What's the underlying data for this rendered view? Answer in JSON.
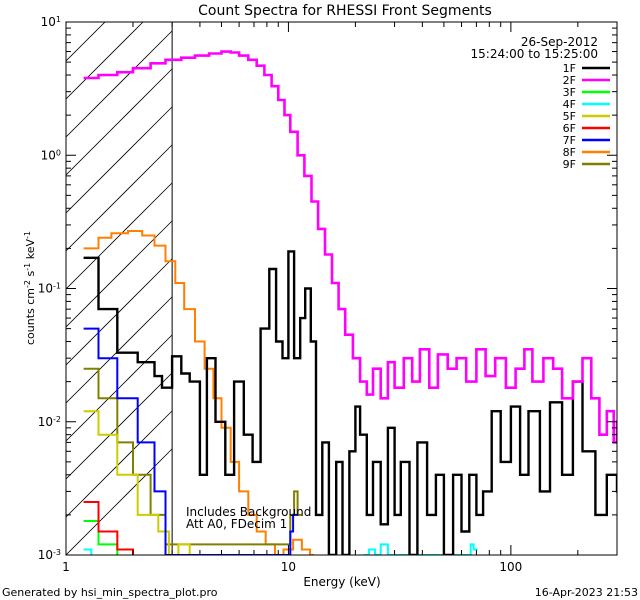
{
  "chart_data": {
    "type": "line",
    "title": "Count Spectra for RHESSI Front Segments",
    "xlabel": "Energy (keV)",
    "ylabel_main": "counts cm",
    "ylabel_exp1": "-2",
    "ylabel_mid": " s",
    "ylabel_exp2": "-1",
    "ylabel_end": " keV",
    "ylabel_exp3": "-1",
    "x_scale": "log",
    "y_scale": "log",
    "xlim": [
      1,
      300
    ],
    "ylim": [
      0.001,
      10
    ],
    "x_ticks": [
      {
        "value": 1,
        "label": "1"
      },
      {
        "value": 10,
        "label": "10"
      },
      {
        "value": 100,
        "label": "100"
      }
    ],
    "y_ticks": [
      {
        "value": 0.001,
        "base": "10",
        "exp": "-3"
      },
      {
        "value": 0.01,
        "base": "10",
        "exp": "-2"
      },
      {
        "value": 0.1,
        "base": "10",
        "exp": "-1"
      },
      {
        "value": 1,
        "base": "10",
        "exp": "0"
      },
      {
        "value": 10,
        "base": "10",
        "exp": "1"
      }
    ],
    "date": "26-Sep-2012",
    "time_range": "15:24:00 to 15:25:00",
    "legend_position": "top-right",
    "hatched_region_x": [
      1,
      3
    ],
    "annotations": [
      "Includes Background",
      "Att A0, FDecim 1"
    ],
    "series": [
      {
        "name": "1F",
        "color": "#000000",
        "points": [
          [
            1.2,
            0.17
          ],
          [
            1.4,
            0.07
          ],
          [
            1.7,
            0.033
          ],
          [
            2.1,
            0.028
          ],
          [
            2.5,
            0.022
          ],
          [
            2.7,
            0.018
          ],
          [
            3.0,
            0.031
          ],
          [
            3.3,
            0.023
          ],
          [
            3.6,
            0.02
          ],
          [
            4.0,
            0.004
          ],
          [
            4.3,
            0.03
          ],
          [
            4.7,
            0.01
          ],
          [
            5.2,
            0.004
          ],
          [
            5.7,
            0.02
          ],
          [
            6.3,
            0.008
          ],
          [
            6.9,
            0.005
          ],
          [
            7.5,
            0.05
          ],
          [
            8.2,
            0.14
          ],
          [
            8.8,
            0.04
          ],
          [
            9.4,
            0.03
          ],
          [
            10.0,
            0.19
          ],
          [
            10.6,
            0.03
          ],
          [
            11.3,
            0.06
          ],
          [
            11.9,
            0.1
          ],
          [
            12.6,
            0.04
          ],
          [
            13.3,
            0.002
          ],
          [
            14.2,
            0.007
          ],
          [
            15.2,
            0.001
          ],
          [
            16.4,
            0.005
          ],
          [
            17.5,
            0.001
          ],
          [
            18.8,
            0.006
          ],
          [
            20.0,
            0.013
          ],
          [
            21.0,
            0.008
          ],
          [
            22.5,
            0.002
          ],
          [
            24.0,
            0.005
          ],
          [
            26.0,
            0.0017
          ],
          [
            28.0,
            0.009
          ],
          [
            30.0,
            0.002
          ],
          [
            32.0,
            0.005
          ],
          [
            35.0,
            0.001
          ],
          [
            38.0,
            0.007
          ],
          [
            42.0,
            0.002
          ],
          [
            46.0,
            0.004
          ],
          [
            50.0,
            0.001
          ],
          [
            55.0,
            0.004
          ],
          [
            60.0,
            0.0015
          ],
          [
            65.0,
            0.004
          ],
          [
            70.0,
            0.002
          ],
          [
            75.0,
            0.003
          ],
          [
            82.0,
            0.012
          ],
          [
            90.0,
            0.005
          ],
          [
            100.0,
            0.013
          ],
          [
            110.0,
            0.004
          ],
          [
            120.0,
            0.012
          ],
          [
            135.0,
            0.003
          ],
          [
            150.0,
            0.014
          ],
          [
            170.0,
            0.004
          ],
          [
            190.0,
            0.02
          ],
          [
            210.0,
            0.006
          ],
          [
            240.0,
            0.002
          ],
          [
            270.0,
            0.004
          ],
          [
            300.0,
            0.003
          ]
        ]
      },
      {
        "name": "2F",
        "color": "#ff00ff",
        "points": [
          [
            1.2,
            3.8
          ],
          [
            1.4,
            4.0
          ],
          [
            1.7,
            4.2
          ],
          [
            2.0,
            4.5
          ],
          [
            2.4,
            4.9
          ],
          [
            2.8,
            5.2
          ],
          [
            3.3,
            5.4
          ],
          [
            3.8,
            5.6
          ],
          [
            4.4,
            5.8
          ],
          [
            5.0,
            6.0
          ],
          [
            5.5,
            5.9
          ],
          [
            6.0,
            5.6
          ],
          [
            6.6,
            5.2
          ],
          [
            7.2,
            4.7
          ],
          [
            7.8,
            4.0
          ],
          [
            8.4,
            3.3
          ],
          [
            9.0,
            2.6
          ],
          [
            9.6,
            2.0
          ],
          [
            10.2,
            1.5
          ],
          [
            11.0,
            1.0
          ],
          [
            11.8,
            0.7
          ],
          [
            12.7,
            0.45
          ],
          [
            13.6,
            0.28
          ],
          [
            14.6,
            0.18
          ],
          [
            15.7,
            0.11
          ],
          [
            16.8,
            0.07
          ],
          [
            18.0,
            0.045
          ],
          [
            19.5,
            0.03
          ],
          [
            21.0,
            0.02
          ],
          [
            22.5,
            0.016
          ],
          [
            24.0,
            0.025
          ],
          [
            26.0,
            0.015
          ],
          [
            28.0,
            0.028
          ],
          [
            30.0,
            0.018
          ],
          [
            33.0,
            0.03
          ],
          [
            36.0,
            0.02
          ],
          [
            39.0,
            0.035
          ],
          [
            43.0,
            0.018
          ],
          [
            47.0,
            0.032
          ],
          [
            52.0,
            0.025
          ],
          [
            57.0,
            0.03
          ],
          [
            63.0,
            0.02
          ],
          [
            70.0,
            0.035
          ],
          [
            77.0,
            0.022
          ],
          [
            85.0,
            0.03
          ],
          [
            95.0,
            0.018
          ],
          [
            105.0,
            0.025
          ],
          [
            115.0,
            0.035
          ],
          [
            125.0,
            0.02
          ],
          [
            140.0,
            0.03
          ],
          [
            155.0,
            0.025
          ],
          [
            170.0,
            0.015
          ],
          [
            190.0,
            0.02
          ],
          [
            210.0,
            0.03
          ],
          [
            230.0,
            0.015
          ],
          [
            250.0,
            0.008
          ],
          [
            270.0,
            0.012
          ],
          [
            290.0,
            0.007
          ],
          [
            300.0,
            0.01
          ]
        ]
      },
      {
        "name": "3F",
        "color": "#00ff00",
        "points": [
          [
            1.2,
            0.0018
          ],
          [
            1.4,
            0.0012
          ],
          [
            1.7,
            0.0009
          ]
        ]
      },
      {
        "name": "4F",
        "color": "#00ffff",
        "points": [
          [
            1.2,
            0.0011
          ],
          [
            1.3,
            0.0009
          ],
          [
            22.0,
            0.001
          ],
          [
            23.0,
            0.0011
          ],
          [
            24.5,
            0.001
          ],
          [
            26.0,
            0.0012
          ],
          [
            28.0,
            0.001
          ],
          [
            66.0,
            0.0012
          ],
          [
            68.0,
            0.0011
          ]
        ]
      },
      {
        "name": "5F",
        "color": "#cccc00",
        "points": [
          [
            1.2,
            0.012
          ],
          [
            1.4,
            0.008
          ],
          [
            1.7,
            0.004
          ],
          [
            2.1,
            0.002
          ],
          [
            2.6,
            0.0015
          ],
          [
            2.9,
            0.001
          ],
          [
            3.2,
            0.0012
          ],
          [
            3.6,
            0.001
          ]
        ]
      },
      {
        "name": "6F",
        "color": "#ff0000",
        "points": [
          [
            1.2,
            0.0025
          ],
          [
            1.4,
            0.0015
          ],
          [
            1.7,
            0.0011
          ],
          [
            2.0,
            0.0009
          ]
        ]
      },
      {
        "name": "7F",
        "color": "#0000ff",
        "points": [
          [
            1.2,
            0.05
          ],
          [
            1.4,
            0.03
          ],
          [
            1.7,
            0.015
          ],
          [
            2.1,
            0.007
          ],
          [
            2.5,
            0.003
          ],
          [
            2.8,
            0.001
          ],
          [
            10.2,
            0.0015
          ],
          [
            10.5,
            0.002
          ]
        ]
      },
      {
        "name": "8F",
        "color": "#ff8000",
        "points": [
          [
            1.2,
            0.2
          ],
          [
            1.4,
            0.24
          ],
          [
            1.6,
            0.26
          ],
          [
            1.9,
            0.27
          ],
          [
            2.2,
            0.25
          ],
          [
            2.5,
            0.21
          ],
          [
            2.8,
            0.16
          ],
          [
            3.1,
            0.11
          ],
          [
            3.4,
            0.07
          ],
          [
            3.8,
            0.04
          ],
          [
            4.2,
            0.025
          ],
          [
            4.6,
            0.015
          ],
          [
            5.0,
            0.009
          ],
          [
            5.5,
            0.005
          ],
          [
            6.0,
            0.003
          ],
          [
            6.6,
            0.002
          ],
          [
            7.2,
            0.0015
          ],
          [
            7.9,
            0.0012
          ],
          [
            8.7,
            0.001
          ],
          [
            9.5,
            0.0011
          ],
          [
            10.5,
            0.0013
          ],
          [
            11.5,
            0.0011
          ],
          [
            12.5,
            0.001
          ]
        ]
      },
      {
        "name": "9F",
        "color": "#808000",
        "points": [
          [
            1.2,
            0.025
          ],
          [
            1.4,
            0.015
          ],
          [
            1.7,
            0.007
          ],
          [
            2.0,
            0.004
          ],
          [
            2.4,
            0.002
          ],
          [
            2.8,
            0.0012
          ],
          [
            10.2,
            0.002
          ],
          [
            10.6,
            0.003
          ],
          [
            11.0,
            0.002
          ]
        ]
      }
    ]
  },
  "footer": {
    "generated": "Generated by hsi_min_spectra_plot.pro",
    "timestamp": "16-Apr-2023 21:53"
  }
}
